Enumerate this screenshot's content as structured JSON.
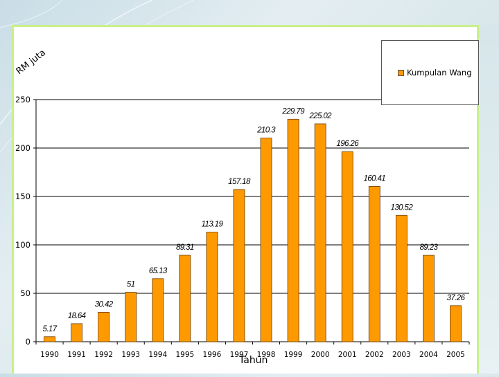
{
  "colors": {
    "bar": "#ff9900",
    "bar_edge": "#6b3d00",
    "grid": "#000000"
  },
  "chart_data": {
    "type": "bar",
    "title": "",
    "xlabel": "Tahun",
    "ylabel": "RM juta",
    "ylim": [
      0,
      250
    ],
    "yticks": [
      0,
      50,
      100,
      150,
      200,
      250
    ],
    "categories": [
      "1990",
      "1991",
      "1992",
      "1993",
      "1994",
      "1995",
      "1996",
      "1997",
      "1998",
      "1999",
      "2000",
      "2001",
      "2002",
      "2003",
      "2004",
      "2005"
    ],
    "series": [
      {
        "name": "Kumpulan Wang",
        "values": [
          5.17,
          18.64,
          30.42,
          51,
          65.13,
          89.31,
          113.19,
          157.18,
          210.3,
          229.79,
          225.02,
          196.26,
          160.41,
          130.52,
          89.23,
          37.26
        ],
        "labels": [
          "5.17",
          "18.64",
          "30.42",
          "51",
          "65.13",
          "89.31",
          "113.19",
          "157.18",
          "210.3",
          "229.79",
          "225.02",
          "196.26",
          "160.41",
          "130.52",
          "89.23",
          "37.26"
        ]
      }
    ],
    "legend": "top-right",
    "grid": true
  }
}
